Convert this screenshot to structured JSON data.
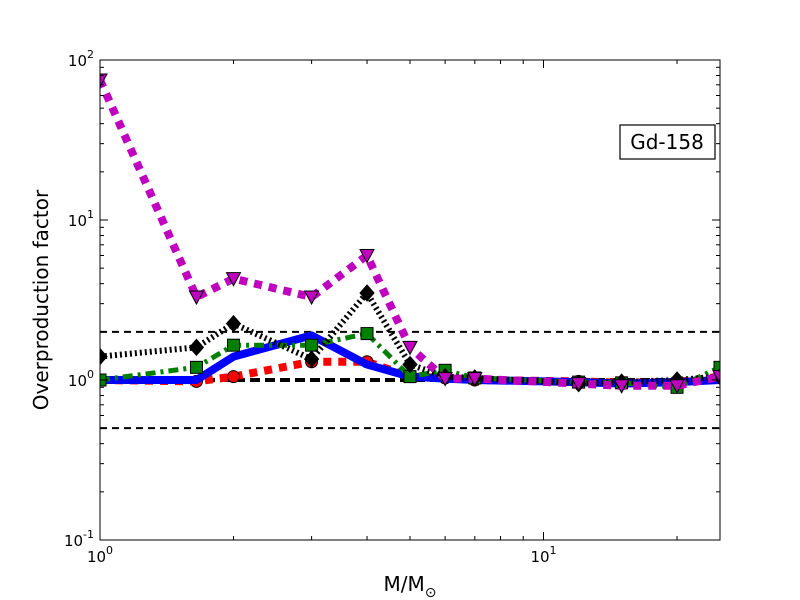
{
  "chart_data": {
    "type": "line",
    "title": "",
    "xlabel": "M/M",
    "xlabel_sub": "⊙",
    "ylabel": "Overproduction factor",
    "xscale": "log",
    "yscale": "log",
    "xlim": [
      1,
      25
    ],
    "ylim": [
      0.1,
      100
    ],
    "grid": false,
    "x_ticks": [
      {
        "base": "10",
        "exp": "0",
        "value": 1
      },
      {
        "base": "10",
        "exp": "1",
        "value": 10
      }
    ],
    "y_ticks": [
      {
        "base": "10",
        "exp": "-1",
        "value": 0.1
      },
      {
        "base": "10",
        "exp": "0",
        "value": 1
      },
      {
        "base": "10",
        "exp": "1",
        "value": 10
      },
      {
        "base": "10",
        "exp": "2",
        "value": 100
      }
    ],
    "annotation": "Gd-158",
    "annotation_position": "top-right",
    "reference_lines": [
      {
        "y": 2.0,
        "style": "dashed",
        "color": "#000000"
      },
      {
        "y": 1.0,
        "style": "dashed-thick",
        "color": "#000000"
      },
      {
        "y": 0.5,
        "style": "dashed",
        "color": "#000000"
      }
    ],
    "series": [
      {
        "style": "dotted",
        "color": "#ff0000",
        "marker": "circle",
        "x": [
          1,
          1.65,
          2,
          3,
          4,
          5,
          6,
          7,
          12,
          15,
          20,
          25
        ],
        "y": [
          1.0,
          0.98,
          1.05,
          1.3,
          1.3,
          1.05,
          1.03,
          1.0,
          0.98,
          0.96,
          0.97,
          1.05
        ]
      },
      {
        "style": "solid",
        "color": "#0000ff",
        "marker": "none",
        "x": [
          1,
          1.65,
          2,
          3,
          4,
          5,
          6,
          7,
          12,
          15,
          20,
          25
        ],
        "y": [
          1.0,
          1.0,
          1.4,
          1.9,
          1.25,
          1.05,
          1.02,
          1.0,
          0.97,
          0.95,
          0.97,
          1.0
        ]
      },
      {
        "style": "dashdot",
        "color": "#008000",
        "marker": "square",
        "x": [
          1,
          1.65,
          2,
          3,
          4,
          5,
          6,
          7,
          12,
          15,
          20,
          25
        ],
        "y": [
          1.0,
          1.2,
          1.65,
          1.65,
          1.95,
          1.05,
          1.15,
          1.03,
          0.97,
          0.96,
          0.9,
          1.2
        ]
      },
      {
        "style": "dotted-dense",
        "color": "#000000",
        "marker": "diamond",
        "x": [
          1,
          1.65,
          2,
          3,
          4,
          5,
          6,
          7,
          12,
          15,
          20,
          25
        ],
        "y": [
          1.4,
          1.6,
          2.25,
          1.35,
          3.5,
          1.25,
          1.05,
          1.03,
          0.95,
          0.97,
          1.0,
          1.05
        ]
      },
      {
        "style": "dotted",
        "color": "#bf00bf",
        "marker": "triangle-down",
        "x": [
          1,
          1.65,
          2,
          3,
          4,
          5,
          6,
          7,
          12,
          15,
          20,
          25
        ],
        "y": [
          75,
          3.3,
          4.3,
          3.3,
          6.0,
          1.6,
          1.02,
          1.02,
          0.95,
          0.92,
          0.92,
          1.05
        ]
      }
    ]
  }
}
